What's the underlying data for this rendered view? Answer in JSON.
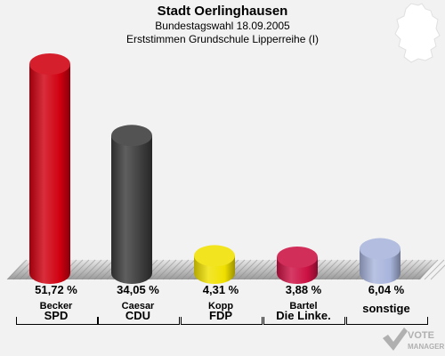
{
  "header": {
    "title": "Stadt Oerlinghausen",
    "subtitle": "Bundestagswahl 18.09.2005",
    "subtitle2": "Erststimmen Grundschule Lipperreihe (I)"
  },
  "chart_data": {
    "type": "bar",
    "categories": [
      "SPD",
      "CDU",
      "FDP",
      "Die Linke.",
      "sonstige"
    ],
    "candidates": [
      "Becker",
      "Caesar",
      "Kopp",
      "Bartel",
      ""
    ],
    "values": [
      51.72,
      34.05,
      4.31,
      3.88,
      6.04
    ],
    "value_labels": [
      "51,72 %",
      "34,05 %",
      "4,31 %",
      "3,88 %",
      "6,04 %"
    ],
    "colors": [
      "#d00010",
      "#3c3c3c",
      "#f0e000",
      "#cc1144",
      "#a8b4dc"
    ],
    "ylim": [
      0,
      51.72
    ]
  },
  "logo": {
    "line1": "VOTE",
    "line2": "MANAGER"
  }
}
